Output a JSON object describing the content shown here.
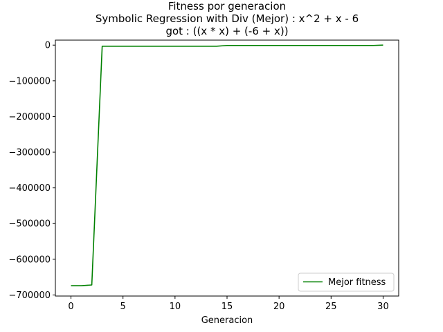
{
  "chart_data": {
    "type": "line",
    "title_lines": [
      "Fitness por generacion",
      "Symbolic Regression with Div (Mejor) : x^2 + x - 6",
      "got : ((x * x) + (-6 + x))"
    ],
    "xlabel": "Generacion",
    "ylabel": "",
    "xlim": [
      -1.5,
      31.5
    ],
    "ylim": [
      -703000,
      14000
    ],
    "xticks": [
      0,
      5,
      10,
      15,
      20,
      25,
      30
    ],
    "yticks": [
      0,
      -100000,
      -200000,
      -300000,
      -400000,
      -500000,
      -600000,
      -700000
    ],
    "xtick_labels": [
      "0",
      "5",
      "10",
      "15",
      "20",
      "25",
      "30"
    ],
    "ytick_labels": [
      "0",
      "−100000",
      "−200000",
      "−300000",
      "−400000",
      "−500000",
      "−600000",
      "−700000"
    ],
    "grid": false,
    "legend_position": "bottom-right",
    "series": [
      {
        "name": "Mejor fitness",
        "color": "#008000",
        "x": [
          0,
          1,
          2,
          3,
          4,
          5,
          6,
          7,
          8,
          9,
          10,
          11,
          12,
          13,
          14,
          15,
          16,
          17,
          18,
          19,
          20,
          21,
          22,
          23,
          24,
          25,
          26,
          27,
          28,
          29,
          30
        ],
        "y": [
          -674000,
          -674000,
          -672000,
          -3000,
          -3000,
          -3000,
          -3000,
          -3000,
          -3000,
          -3000,
          -3000,
          -3000,
          -3000,
          -3000,
          -3000,
          -1000,
          -1000,
          -1000,
          -1000,
          -1000,
          -1000,
          -1000,
          -1000,
          -1000,
          -1000,
          -1000,
          -1000,
          -1000,
          -1000,
          -1000,
          0
        ]
      }
    ]
  }
}
